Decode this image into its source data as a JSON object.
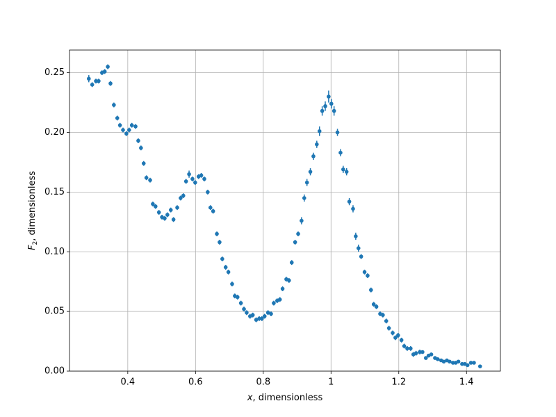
{
  "chart_data": {
    "type": "errorbar",
    "xlabel": {
      "symbol": "x",
      "text": ", dimensionless"
    },
    "ylabel": {
      "symbol": "F",
      "subscript": "2",
      "text": ", dimensionless"
    },
    "x": [
      0.285,
      0.295,
      0.306,
      0.314,
      0.324,
      0.332,
      0.341,
      0.349,
      0.359,
      0.369,
      0.377,
      0.386,
      0.396,
      0.404,
      0.412,
      0.423,
      0.431,
      0.439,
      0.447,
      0.455,
      0.466,
      0.474,
      0.482,
      0.492,
      0.501,
      0.509,
      0.517,
      0.527,
      0.535,
      0.546,
      0.556,
      0.564,
      0.572,
      0.581,
      0.591,
      0.599,
      0.609,
      0.617,
      0.626,
      0.636,
      0.644,
      0.652,
      0.663,
      0.671,
      0.679,
      0.689,
      0.697,
      0.708,
      0.716,
      0.724,
      0.734,
      0.743,
      0.751,
      0.761,
      0.769,
      0.779,
      0.788,
      0.796,
      0.804,
      0.814,
      0.823,
      0.831,
      0.841,
      0.849,
      0.857,
      0.868,
      0.876,
      0.884,
      0.894,
      0.903,
      0.913,
      0.921,
      0.929,
      0.939,
      0.948,
      0.958,
      0.966,
      0.974,
      0.983,
      0.993,
      1.001,
      1.009,
      1.019,
      1.028,
      1.036,
      1.046,
      1.054,
      1.065,
      1.073,
      1.081,
      1.089,
      1.099,
      1.108,
      1.118,
      1.126,
      1.134,
      1.145,
      1.153,
      1.163,
      1.171,
      1.182,
      1.19,
      1.198,
      1.208,
      1.216,
      1.225,
      1.235,
      1.243,
      1.251,
      1.262,
      1.27,
      1.28,
      1.288,
      1.296,
      1.307,
      1.315,
      1.325,
      1.333,
      1.342,
      1.35,
      1.36,
      1.368,
      1.376,
      1.387,
      1.395,
      1.403,
      1.413,
      1.422,
      1.44
    ],
    "series": [
      {
        "color": "#1f77b4",
        "values": [
          0.245,
          0.24,
          0.243,
          0.243,
          0.25,
          0.251,
          0.255,
          0.241,
          0.223,
          0.212,
          0.206,
          0.202,
          0.199,
          0.202,
          0.206,
          0.205,
          0.193,
          0.187,
          0.174,
          0.162,
          0.16,
          0.14,
          0.138,
          0.133,
          0.129,
          0.128,
          0.131,
          0.135,
          0.127,
          0.137,
          0.145,
          0.147,
          0.159,
          0.165,
          0.161,
          0.158,
          0.163,
          0.164,
          0.161,
          0.15,
          0.137,
          0.134,
          0.115,
          0.108,
          0.094,
          0.087,
          0.083,
          0.073,
          0.063,
          0.062,
          0.057,
          0.052,
          0.049,
          0.046,
          0.047,
          0.043,
          0.044,
          0.044,
          0.046,
          0.049,
          0.048,
          0.057,
          0.059,
          0.06,
          0.069,
          0.077,
          0.076,
          0.091,
          0.108,
          0.115,
          0.126,
          0.145,
          0.158,
          0.167,
          0.18,
          0.19,
          0.201,
          0.218,
          0.222,
          0.23,
          0.224,
          0.218,
          0.2,
          0.183,
          0.169,
          0.167,
          0.142,
          0.136,
          0.113,
          0.103,
          0.096,
          0.083,
          0.08,
          0.068,
          0.056,
          0.054,
          0.048,
          0.047,
          0.042,
          0.036,
          0.032,
          0.028,
          0.03,
          0.026,
          0.021,
          0.019,
          0.019,
          0.014,
          0.015,
          0.016,
          0.016,
          0.011,
          0.013,
          0.014,
          0.011,
          0.01,
          0.009,
          0.008,
          0.009,
          0.008,
          0.007,
          0.007,
          0.008,
          0.006,
          0.006,
          0.005,
          0.007,
          0.007,
          0.004
        ],
        "yerr": [
          0.003,
          0.002,
          0.002,
          0.002,
          0.002,
          0.002,
          0.002,
          0.002,
          0.002,
          0.002,
          0.002,
          0.002,
          0.002,
          0.002,
          0.002,
          0.002,
          0.002,
          0.002,
          0.002,
          0.002,
          0.002,
          0.002,
          0.002,
          0.002,
          0.002,
          0.002,
          0.002,
          0.002,
          0.002,
          0.002,
          0.002,
          0.002,
          0.002,
          0.003,
          0.002,
          0.002,
          0.002,
          0.002,
          0.002,
          0.002,
          0.002,
          0.002,
          0.002,
          0.002,
          0.002,
          0.002,
          0.002,
          0.002,
          0.002,
          0.002,
          0.002,
          0.002,
          0.002,
          0.002,
          0.002,
          0.002,
          0.002,
          0.002,
          0.002,
          0.002,
          0.002,
          0.002,
          0.002,
          0.002,
          0.002,
          0.002,
          0.002,
          0.002,
          0.002,
          0.002,
          0.003,
          0.003,
          0.003,
          0.003,
          0.003,
          0.003,
          0.004,
          0.004,
          0.004,
          0.005,
          0.004,
          0.004,
          0.003,
          0.003,
          0.003,
          0.003,
          0.003,
          0.003,
          0.003,
          0.003,
          0.002,
          0.002,
          0.002,
          0.002,
          0.002,
          0.002,
          0.002,
          0.002,
          0.002,
          0.002,
          0.002,
          0.002,
          0.002,
          0.002,
          0.002,
          0.002,
          0.002,
          0.002,
          0.002,
          0.002,
          0.001,
          0.001,
          0.001,
          0.001,
          0.001,
          0.001,
          0.001,
          0.001,
          0.001,
          0.001,
          0.001,
          0.001,
          0.001,
          0.001,
          0.001,
          0.001,
          0.001,
          0.001,
          0.001
        ]
      }
    ],
    "xlim": [
      0.228,
      1.5
    ],
    "ylim": [
      0,
      0.269
    ],
    "xticks": [
      0.4,
      0.6,
      0.8,
      1.0,
      1.2,
      1.4
    ],
    "yticks": [
      {
        "value": 0,
        "label": "0.00"
      },
      {
        "value": 0.05,
        "label": "0.05"
      },
      {
        "value": 0.1,
        "label": "0.10"
      },
      {
        "value": 0.15,
        "label": "0.15"
      },
      {
        "value": 0.2,
        "label": "0.20"
      },
      {
        "value": 0.25,
        "label": "0.25"
      }
    ],
    "grid": true
  }
}
